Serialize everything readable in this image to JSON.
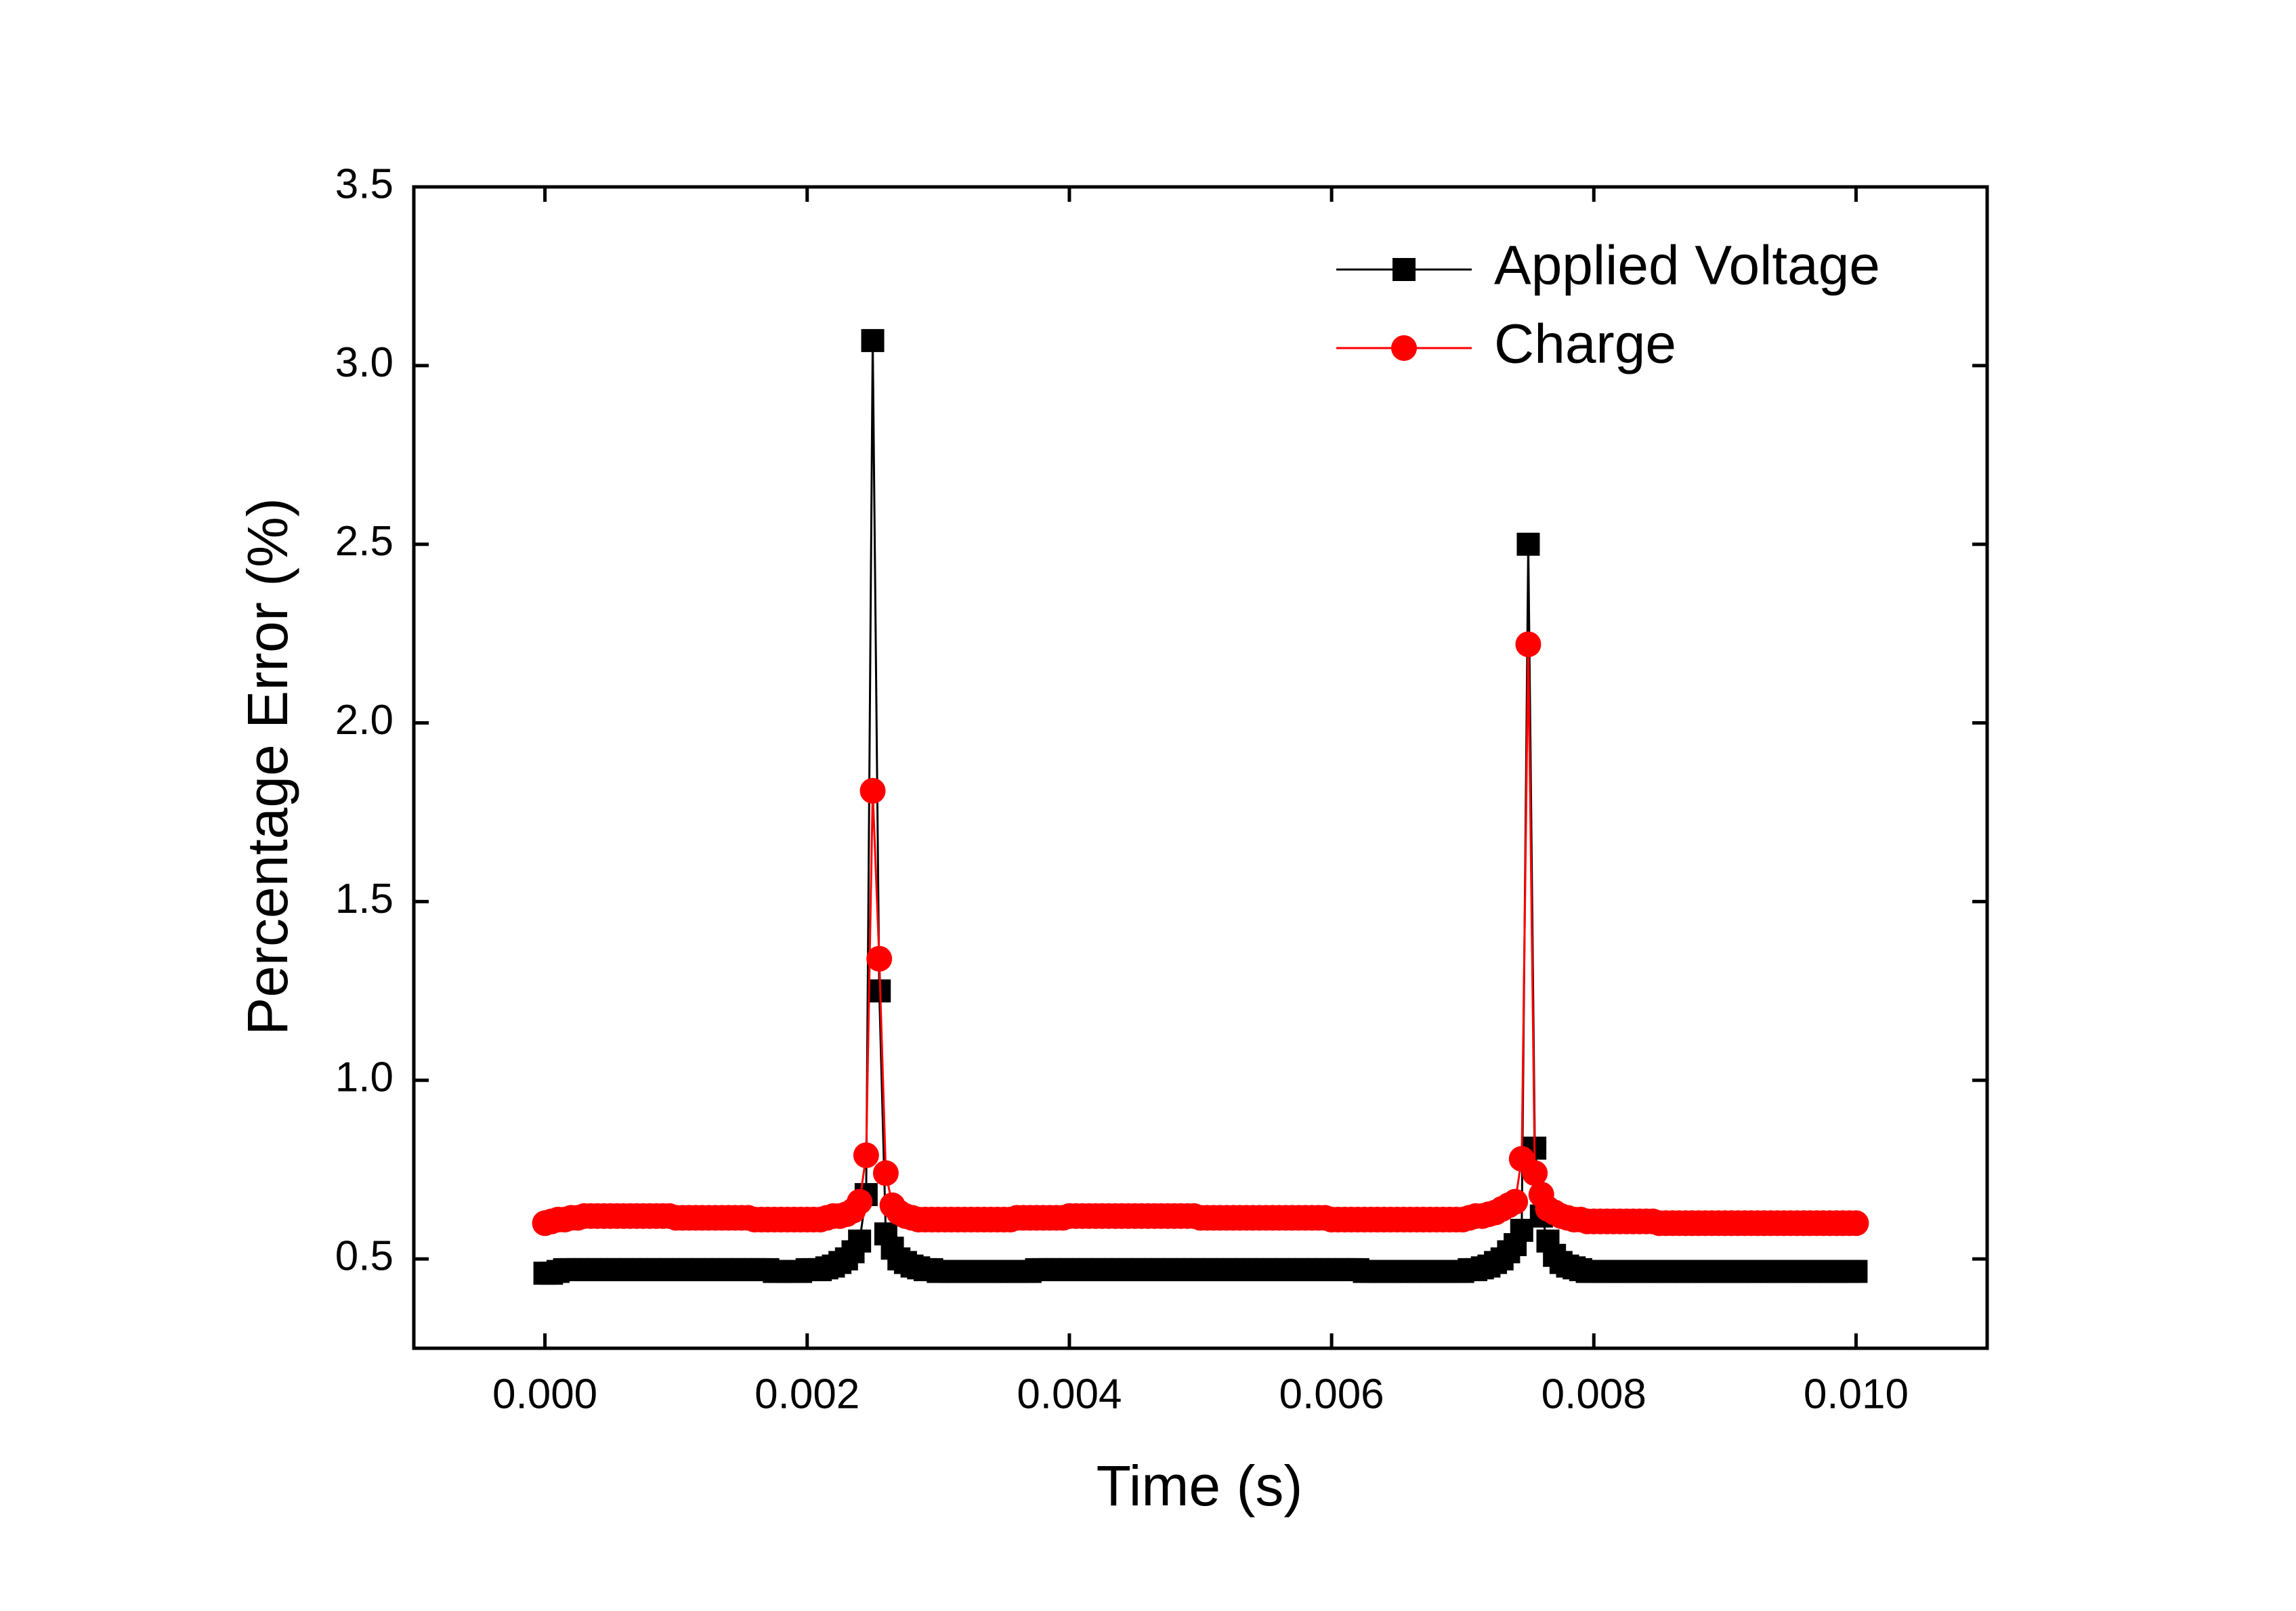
{
  "chart_data": {
    "type": "line",
    "x_label": "Time (s)",
    "y_label": "Percentage Error (%)",
    "xlim": [
      -0.001,
      0.011
    ],
    "ylim": [
      0.25,
      3.5
    ],
    "xticks": [
      {
        "value": 0,
        "label": "0.000"
      },
      {
        "value": 0.002,
        "label": "0.002"
      },
      {
        "value": 0.004,
        "label": "0.004"
      },
      {
        "value": 0.006,
        "label": "0.006"
      },
      {
        "value": 0.008,
        "label": "0.008"
      },
      {
        "value": 0.01,
        "label": "0.010"
      }
    ],
    "yticks": [
      0.5,
      {
        "value": 1,
        "label": "1.0"
      },
      1.5,
      {
        "value": 2,
        "label": "2.0"
      },
      2.5,
      {
        "value": 3,
        "label": "3.0"
      },
      3.5
    ],
    "legend": "upper right",
    "x": [
      0,
      5e-05,
      0.0001,
      0.00015,
      0.0002,
      0.00025,
      0.0003,
      0.00035,
      0.0004,
      0.00045,
      0.0005,
      0.00055,
      0.0006,
      0.00065,
      0.0007,
      0.00075,
      0.0008,
      0.00085,
      0.0009,
      0.00095,
      0.001,
      0.00105,
      0.0011,
      0.00115,
      0.0012,
      0.00125,
      0.0013,
      0.00135,
      0.0014,
      0.00145,
      0.0015,
      0.00155,
      0.0016,
      0.00165,
      0.0017,
      0.00175,
      0.0018,
      0.00185,
      0.0019,
      0.00195,
      0.002,
      0.00205,
      0.0021,
      0.00215,
      0.0022,
      0.00225,
      0.0023,
      0.00235,
      0.0024,
      0.00245,
      0.0025,
      0.00255,
      0.0026,
      0.00265,
      0.0027,
      0.00275,
      0.0028,
      0.00285,
      0.0029,
      0.00295,
      0.003,
      0.00305,
      0.0031,
      0.00315,
      0.0032,
      0.00325,
      0.0033,
      0.00335,
      0.0034,
      0.00345,
      0.0035,
      0.00355,
      0.0036,
      0.00365,
      0.0037,
      0.00375,
      0.0038,
      0.00385,
      0.0039,
      0.00395,
      0.004,
      0.00405,
      0.0041,
      0.00415,
      0.0042,
      0.00425,
      0.0043,
      0.00435,
      0.0044,
      0.00445,
      0.0045,
      0.00455,
      0.0046,
      0.00465,
      0.0047,
      0.00475,
      0.0048,
      0.00485,
      0.0049,
      0.00495,
      0.005,
      0.00505,
      0.0051,
      0.00515,
      0.0052,
      0.00525,
      0.0053,
      0.00535,
      0.0054,
      0.00545,
      0.0055,
      0.00555,
      0.0056,
      0.00565,
      0.0057,
      0.00575,
      0.0058,
      0.00585,
      0.0059,
      0.00595,
      0.006,
      0.00605,
      0.0061,
      0.00615,
      0.0062,
      0.00625,
      0.0063,
      0.00635,
      0.0064,
      0.00645,
      0.0065,
      0.00655,
      0.0066,
      0.00665,
      0.0067,
      0.00675,
      0.0068,
      0.00685,
      0.0069,
      0.00695,
      0.007,
      0.00705,
      0.0071,
      0.00715,
      0.0072,
      0.00725,
      0.0073,
      0.00735,
      0.0074,
      0.00745,
      0.0075,
      0.00755,
      0.0076,
      0.00765,
      0.0077,
      0.00775,
      0.0078,
      0.00785,
      0.0079,
      0.00795,
      0.008,
      0.00805,
      0.0081,
      0.00815,
      0.0082,
      0.00825,
      0.0083,
      0.00835,
      0.0084,
      0.00845,
      0.0085,
      0.00855,
      0.0086,
      0.00865,
      0.0087,
      0.00875,
      0.0088,
      0.00885,
      0.0089,
      0.00895,
      0.009,
      0.00905,
      0.0091,
      0.00915,
      0.0092,
      0.00925,
      0.0093,
      0.00935,
      0.0094,
      0.00945,
      0.0095,
      0.00955,
      0.0096,
      0.00965,
      0.0097,
      0.00975,
      0.0098,
      0.00985,
      0.0099,
      0.00995,
      0.01
    ],
    "series": [
      {
        "name": "Applied Voltage",
        "color": "#000000",
        "marker": "square",
        "values": [
          0.46,
          0.46,
          0.465,
          0.47,
          0.47,
          0.47,
          0.47,
          0.47,
          0.47,
          0.47,
          0.47,
          0.47,
          0.47,
          0.47,
          0.47,
          0.47,
          0.47,
          0.47,
          0.47,
          0.47,
          0.47,
          0.47,
          0.47,
          0.47,
          0.47,
          0.47,
          0.47,
          0.47,
          0.47,
          0.47,
          0.47,
          0.47,
          0.47,
          0.47,
          0.47,
          0.465,
          0.465,
          0.465,
          0.465,
          0.465,
          0.47,
          0.47,
          0.47,
          0.475,
          0.48,
          0.49,
          0.5,
          0.52,
          0.55,
          0.68,
          3.07,
          1.25,
          0.57,
          0.53,
          0.5,
          0.49,
          0.48,
          0.475,
          0.47,
          0.47,
          0.465,
          0.465,
          0.465,
          0.465,
          0.465,
          0.465,
          0.465,
          0.465,
          0.465,
          0.465,
          0.465,
          0.465,
          0.465,
          0.465,
          0.465,
          0.47,
          0.47,
          0.47,
          0.47,
          0.47,
          0.47,
          0.47,
          0.47,
          0.47,
          0.47,
          0.47,
          0.47,
          0.47,
          0.47,
          0.47,
          0.47,
          0.47,
          0.47,
          0.47,
          0.47,
          0.47,
          0.47,
          0.47,
          0.47,
          0.47,
          0.47,
          0.47,
          0.47,
          0.47,
          0.47,
          0.47,
          0.47,
          0.47,
          0.47,
          0.47,
          0.47,
          0.47,
          0.47,
          0.47,
          0.47,
          0.47,
          0.47,
          0.47,
          0.47,
          0.47,
          0.47,
          0.47,
          0.47,
          0.47,
          0.47,
          0.465,
          0.465,
          0.465,
          0.465,
          0.465,
          0.465,
          0.465,
          0.465,
          0.465,
          0.465,
          0.465,
          0.465,
          0.465,
          0.465,
          0.465,
          0.465,
          0.47,
          0.47,
          0.475,
          0.48,
          0.49,
          0.5,
          0.52,
          0.54,
          0.58,
          2.5,
          0.81,
          0.62,
          0.55,
          0.51,
          0.49,
          0.48,
          0.475,
          0.47,
          0.465,
          0.465,
          0.465,
          0.465,
          0.465,
          0.465,
          0.465,
          0.465,
          0.465,
          0.465,
          0.465,
          0.465,
          0.465,
          0.465,
          0.465,
          0.465,
          0.465,
          0.465,
          0.465,
          0.465,
          0.465,
          0.465,
          0.465,
          0.465,
          0.465,
          0.465,
          0.465,
          0.465,
          0.465,
          0.465,
          0.465,
          0.465,
          0.465,
          0.465,
          0.465,
          0.465,
          0.465,
          0.465,
          0.465,
          0.465,
          0.465,
          0.465
        ]
      },
      {
        "name": "Charge",
        "color": "#ff0000",
        "marker": "circle",
        "values": [
          0.6,
          0.605,
          0.61,
          0.61,
          0.615,
          0.615,
          0.62,
          0.62,
          0.62,
          0.62,
          0.62,
          0.62,
          0.62,
          0.62,
          0.62,
          0.62,
          0.62,
          0.62,
          0.62,
          0.62,
          0.615,
          0.615,
          0.615,
          0.615,
          0.615,
          0.615,
          0.615,
          0.615,
          0.615,
          0.615,
          0.615,
          0.615,
          0.61,
          0.61,
          0.61,
          0.61,
          0.61,
          0.61,
          0.61,
          0.61,
          0.61,
          0.61,
          0.61,
          0.615,
          0.62,
          0.62,
          0.625,
          0.635,
          0.66,
          0.79,
          1.81,
          1.34,
          0.74,
          0.65,
          0.63,
          0.62,
          0.615,
          0.61,
          0.61,
          0.61,
          0.61,
          0.61,
          0.61,
          0.61,
          0.61,
          0.61,
          0.61,
          0.61,
          0.61,
          0.61,
          0.61,
          0.61,
          0.615,
          0.615,
          0.615,
          0.615,
          0.615,
          0.615,
          0.615,
          0.615,
          0.62,
          0.62,
          0.62,
          0.62,
          0.62,
          0.62,
          0.62,
          0.62,
          0.62,
          0.62,
          0.62,
          0.62,
          0.62,
          0.62,
          0.62,
          0.62,
          0.62,
          0.62,
          0.62,
          0.62,
          0.615,
          0.615,
          0.615,
          0.615,
          0.615,
          0.615,
          0.615,
          0.615,
          0.615,
          0.615,
          0.615,
          0.615,
          0.615,
          0.615,
          0.615,
          0.615,
          0.615,
          0.615,
          0.615,
          0.615,
          0.61,
          0.61,
          0.61,
          0.61,
          0.61,
          0.61,
          0.61,
          0.61,
          0.61,
          0.61,
          0.61,
          0.61,
          0.61,
          0.61,
          0.61,
          0.61,
          0.61,
          0.61,
          0.61,
          0.61,
          0.61,
          0.615,
          0.62,
          0.62,
          0.625,
          0.63,
          0.64,
          0.65,
          0.66,
          0.78,
          2.22,
          0.74,
          0.68,
          0.64,
          0.63,
          0.62,
          0.615,
          0.61,
          0.61,
          0.605,
          0.605,
          0.605,
          0.605,
          0.605,
          0.605,
          0.605,
          0.605,
          0.605,
          0.605,
          0.605,
          0.6,
          0.6,
          0.6,
          0.6,
          0.6,
          0.6,
          0.6,
          0.6,
          0.6,
          0.6,
          0.6,
          0.6,
          0.6,
          0.6,
          0.6,
          0.6,
          0.6,
          0.6,
          0.6,
          0.6,
          0.6,
          0.6,
          0.6,
          0.6,
          0.6,
          0.6,
          0.6,
          0.6,
          0.6,
          0.6,
          0.6
        ]
      }
    ]
  }
}
